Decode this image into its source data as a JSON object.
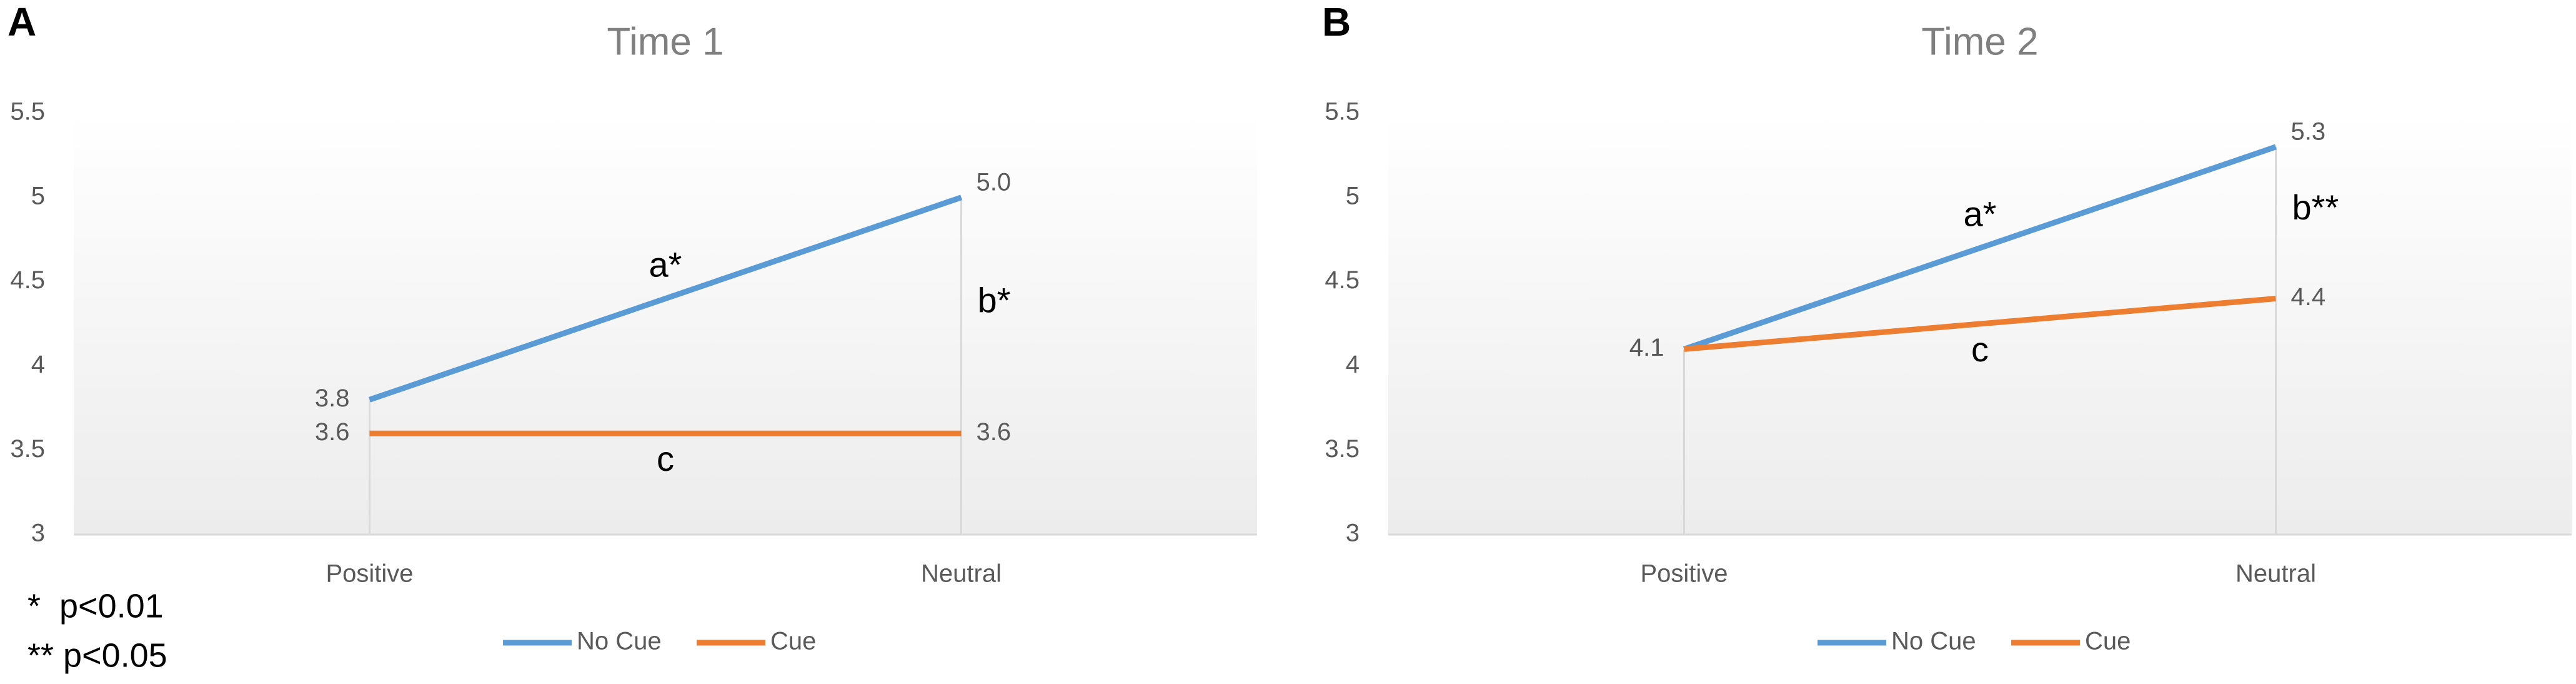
{
  "chart_data": [
    {
      "type": "line",
      "panel": "A",
      "title": "Time 1",
      "categories": [
        "Positive",
        "Neutral"
      ],
      "series": [
        {
          "name": "No Cue",
          "color": "#5b9bd5",
          "values": [
            3.8,
            5.0
          ],
          "value_labels": [
            "3.8",
            "5.0"
          ]
        },
        {
          "name": "Cue",
          "color": "#ed7d31",
          "values": [
            3.6,
            3.6
          ],
          "value_labels": [
            "3.6",
            "3.6"
          ]
        }
      ],
      "annotations": [
        "a*",
        "b*",
        "c"
      ],
      "ylim": [
        3,
        5.5
      ],
      "yticks": [
        3,
        3.5,
        4,
        4.5,
        5,
        5.5
      ],
      "legend": "bottom"
    },
    {
      "type": "line",
      "panel": "B",
      "title": "Time 2",
      "categories": [
        "Positive",
        "Neutral"
      ],
      "series": [
        {
          "name": "No Cue",
          "color": "#5b9bd5",
          "values": [
            4.1,
            5.3
          ],
          "value_labels": [
            "4.1",
            "5.3"
          ]
        },
        {
          "name": "Cue",
          "color": "#ed7d31",
          "values": [
            4.1,
            4.4
          ],
          "value_labels": [
            "4.1",
            "4.4"
          ]
        }
      ],
      "annotations": [
        "a*",
        "b**",
        "c"
      ],
      "ylim": [
        3,
        5.5
      ],
      "yticks": [
        3,
        3.5,
        4,
        4.5,
        5,
        5.5
      ],
      "legend": "bottom"
    }
  ],
  "notes": [
    "*  p<0.01",
    "** p<0.05"
  ]
}
